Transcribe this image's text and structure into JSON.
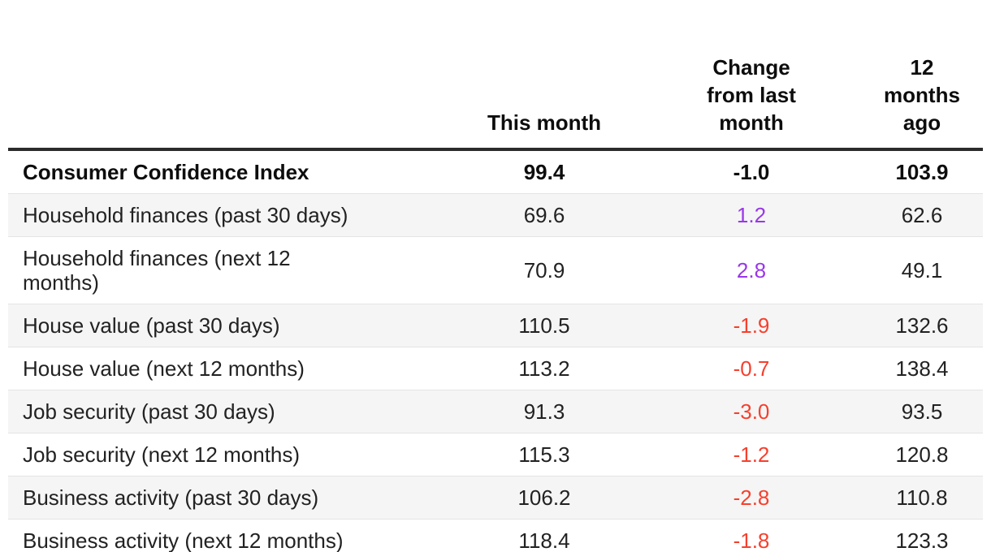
{
  "colors": {
    "negative_change": "#f5402e",
    "positive_change": "#9a37e8",
    "header_rule": "#2b2b2b",
    "row_stripe": "#f5f5f5"
  },
  "table": {
    "columns": [
      {
        "label": ""
      },
      {
        "label": "This month"
      },
      {
        "label": "Change\nfrom last\nmonth"
      },
      {
        "label": "12\nmonths\nago"
      }
    ],
    "rows": [
      {
        "label": "Consumer Confidence Index",
        "this_month": "99.4",
        "change": "-1.0",
        "year_ago": "103.9"
      },
      {
        "label": "Household finances (past 30 days)",
        "this_month": "69.6",
        "change": "1.2",
        "year_ago": "62.6"
      },
      {
        "label": "Household finances (next 12\nmonths)",
        "this_month": "70.9",
        "change": "2.8",
        "year_ago": "49.1"
      },
      {
        "label": "House value (past 30 days)",
        "this_month": "110.5",
        "change": "-1.9",
        "year_ago": "132.6"
      },
      {
        "label": "House value (next 12 months)",
        "this_month": "113.2",
        "change": "-0.7",
        "year_ago": "138.4"
      },
      {
        "label": "Job security (past 30 days)",
        "this_month": "91.3",
        "change": "-3.0",
        "year_ago": "93.5"
      },
      {
        "label": "Job security (next 12 months)",
        "this_month": "115.3",
        "change": "-1.2",
        "year_ago": "120.8"
      },
      {
        "label": "Business activity (past 30 days)",
        "this_month": "106.2",
        "change": "-2.8",
        "year_ago": "110.8"
      },
      {
        "label": "Business activity (next 12 months)",
        "this_month": "118.4",
        "change": "-1.8",
        "year_ago": "123.3"
      }
    ]
  },
  "chart_data": {
    "type": "table",
    "title": "Consumer Confidence Index",
    "columns": [
      "",
      "This month",
      "Change from last month",
      "12 months ago"
    ],
    "rows": [
      [
        "Consumer Confidence Index",
        99.4,
        -1.0,
        103.9
      ],
      [
        "Household finances (past 30 days)",
        69.6,
        1.2,
        62.6
      ],
      [
        "Household finances (next 12 months)",
        70.9,
        2.8,
        49.1
      ],
      [
        "House value (past 30 days)",
        110.5,
        -1.9,
        132.6
      ],
      [
        "House value (next 12 months)",
        113.2,
        -0.7,
        138.4
      ],
      [
        "Job security (past 30 days)",
        91.3,
        -3.0,
        93.5
      ],
      [
        "Job security (next 12 months)",
        115.3,
        -1.2,
        120.8
      ],
      [
        "Business activity (past 30 days)",
        106.2,
        -2.8,
        110.8
      ],
      [
        "Business activity (next 12 months)",
        118.4,
        -1.8,
        123.3
      ]
    ],
    "legend": "none",
    "notes": "Negative change values shown in red, positive in purple; first row bolded as summary row"
  }
}
